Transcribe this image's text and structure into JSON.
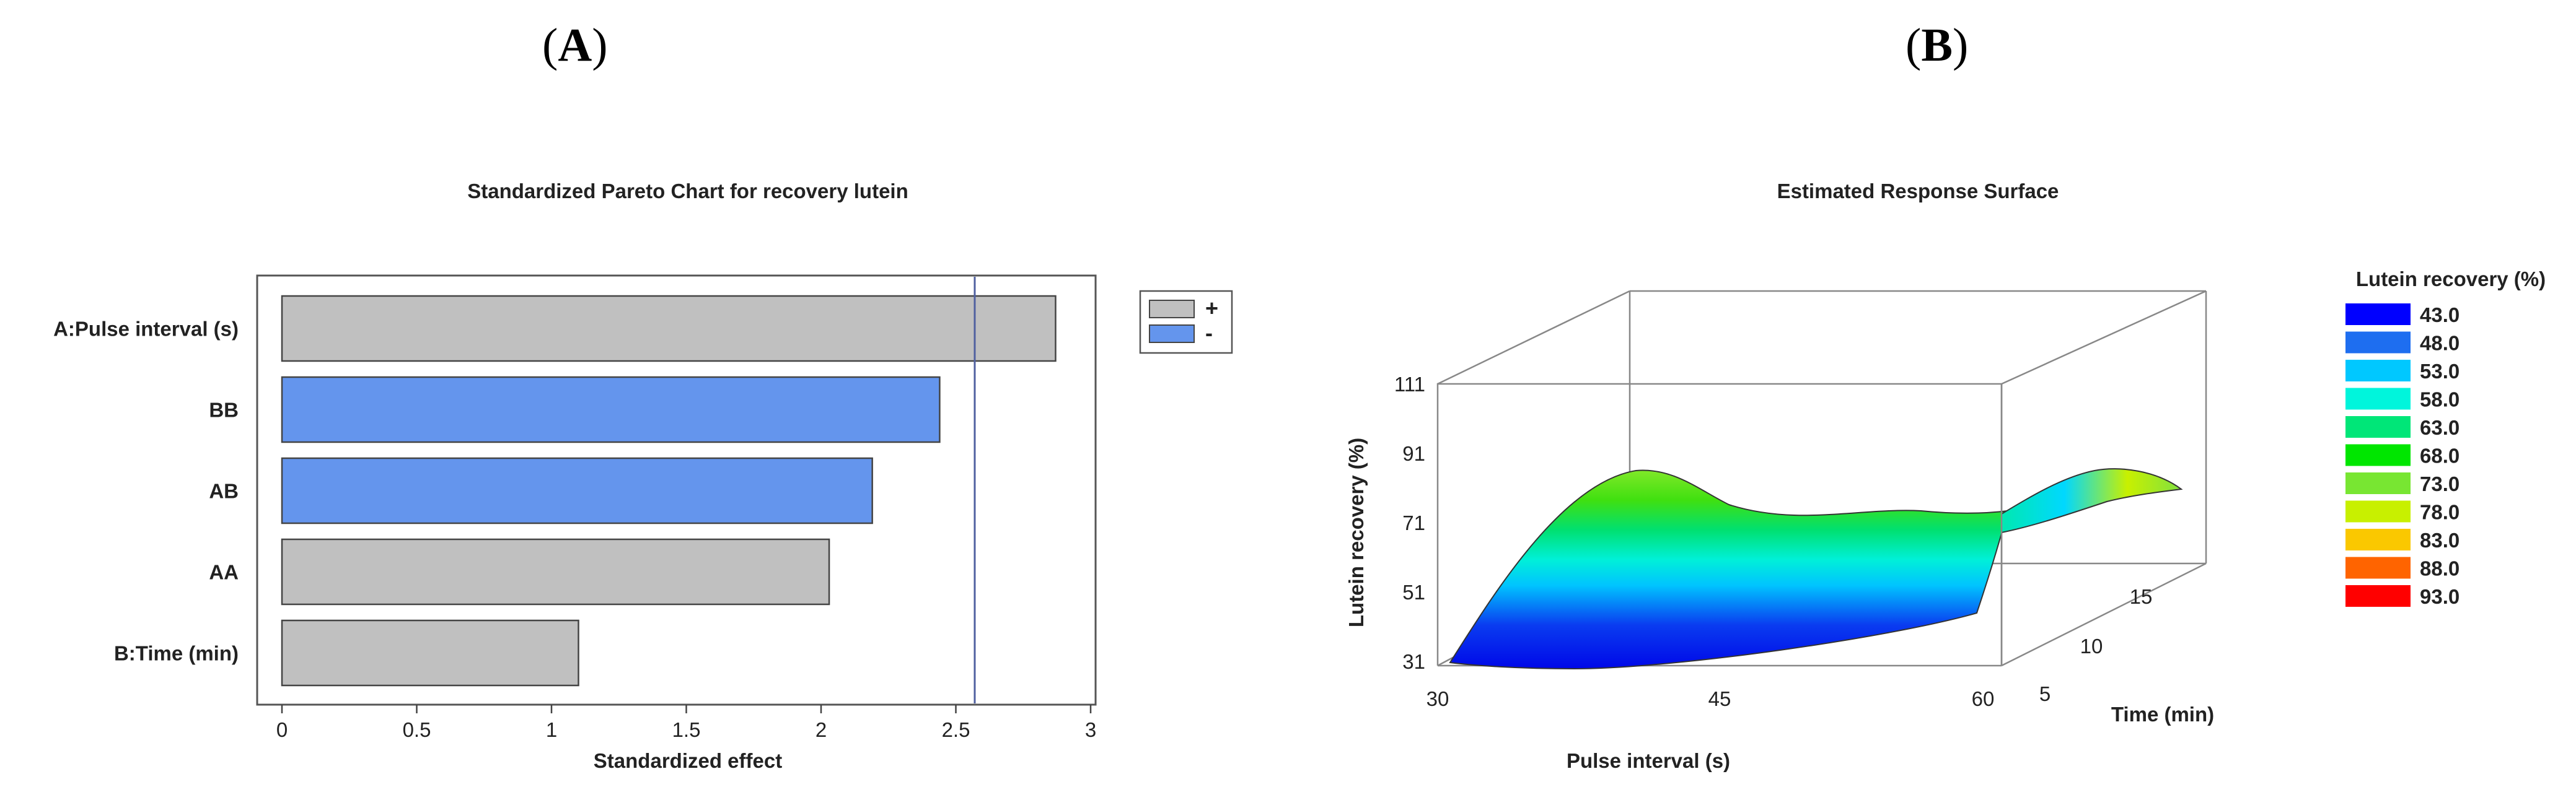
{
  "panels": {
    "a": {
      "open": "(",
      "letter": "A",
      "close": ")"
    },
    "b": {
      "open": "(",
      "letter": "B",
      "close": ")"
    }
  },
  "chart_data": [
    {
      "type": "bar",
      "orientation": "horizontal",
      "title": "Standardized Pareto Chart for recovery lutein",
      "xlabel": "Standardized effect",
      "categories": [
        "A:Pulse interval (s)",
        "BB",
        "AB",
        "AA",
        "B:Time (min)"
      ],
      "values": [
        2.87,
        2.44,
        2.19,
        2.03,
        1.1
      ],
      "signs": [
        "+",
        "-",
        "-",
        "+",
        "+"
      ],
      "legend": [
        {
          "label": "+",
          "color": "#c0c0c0"
        },
        {
          "label": "-",
          "color": "#6495ed"
        }
      ],
      "legend_position": "top-right",
      "reference_line": 2.57,
      "xlim": [
        0,
        3
      ],
      "xticks": [
        "0",
        "0.5",
        "1",
        "1.5",
        "2",
        "2.5",
        "3"
      ],
      "xtick_values": [
        0,
        0.5,
        1,
        1.5,
        2,
        2.5,
        3
      ],
      "colors": {
        "positive": "#c0c0c0",
        "negative": "#6495ed",
        "reference_line": "#5060a0"
      }
    },
    {
      "type": "surface",
      "title": "Estimated Response Surface",
      "xlabel": "Pulse interval (s)",
      "ylabel": "Lutein recovery (%)",
      "zlabel": "Time (min)",
      "xticks": [
        "30",
        "45",
        "60"
      ],
      "yticks": [
        "31",
        "51",
        "71",
        "91",
        "111"
      ],
      "zticks": [
        "5",
        "10",
        "15"
      ],
      "legend_title": "Lutein recovery (%)",
      "legend": [
        {
          "label": "43.0",
          "color": "#0000ff"
        },
        {
          "label": "48.0",
          "color": "#1e6ef0"
        },
        {
          "label": "53.0",
          "color": "#00c8ff"
        },
        {
          "label": "58.0",
          "color": "#00f5dc"
        },
        {
          "label": "63.0",
          "color": "#00e678"
        },
        {
          "label": "68.0",
          "color": "#00e600"
        },
        {
          "label": "73.0",
          "color": "#78e632"
        },
        {
          "label": "78.0",
          "color": "#c8f000"
        },
        {
          "label": "83.0",
          "color": "#fac800"
        },
        {
          "label": "88.0",
          "color": "#ff6400"
        },
        {
          "label": "93.0",
          "color": "#ff0000"
        }
      ],
      "legend_position": "right"
    }
  ]
}
